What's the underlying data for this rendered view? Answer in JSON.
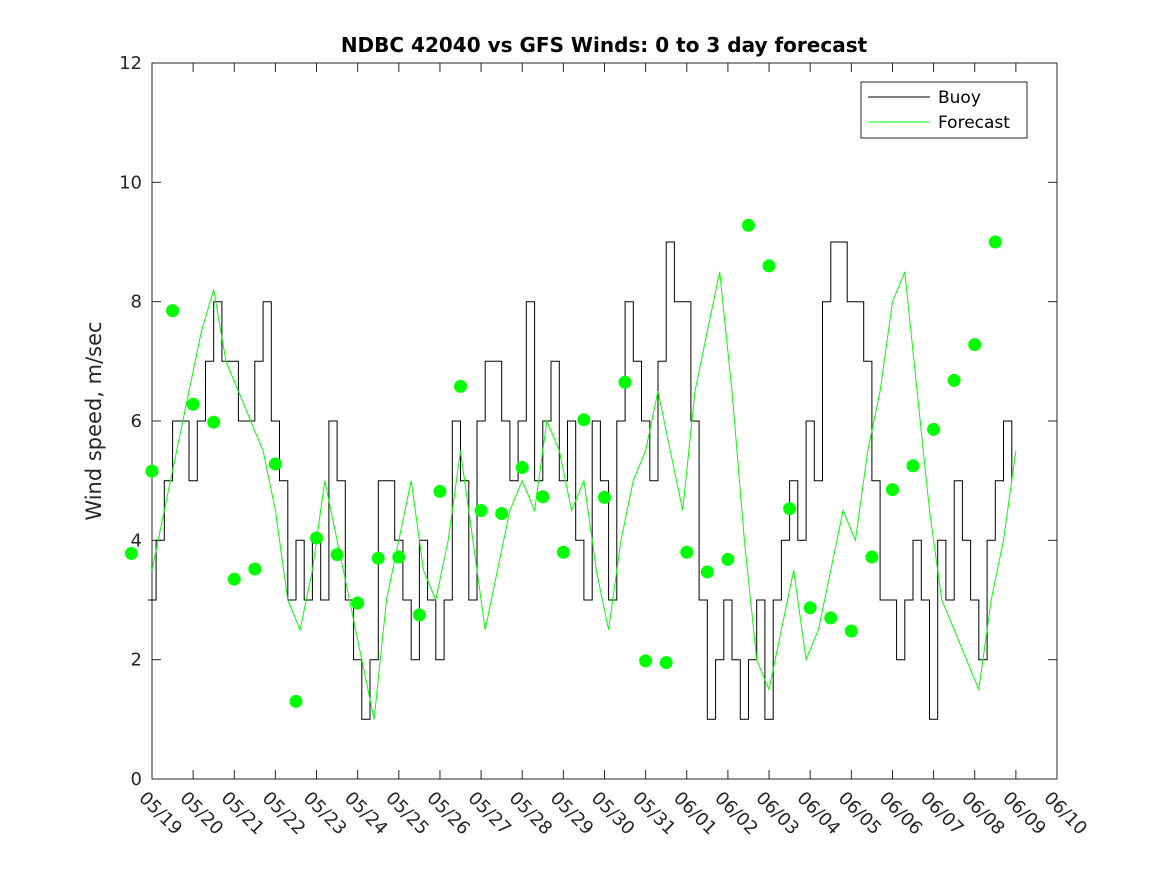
{
  "chart_data": {
    "type": "line",
    "title": "NDBC 42040 vs GFS Winds: 0 to 3 day forecast",
    "xlabel": "",
    "ylabel": "Wind speed, m/sec",
    "xlim": [
      "05/19",
      "06/10"
    ],
    "ylim": [
      0,
      12
    ],
    "y_ticks": [
      0,
      2,
      4,
      6,
      8,
      10,
      12
    ],
    "x_tick_labels": [
      "05/19",
      "05/20",
      "05/21",
      "05/22",
      "05/23",
      "05/24",
      "05/25",
      "05/26",
      "05/27",
      "05/28",
      "05/29",
      "05/30",
      "05/31",
      "06/01",
      "06/02",
      "06/03",
      "06/04",
      "06/05",
      "06/06",
      "06/07",
      "06/08",
      "06/09",
      "06/10"
    ],
    "legend": {
      "placement": "top-right",
      "entries": [
        "Buoy",
        "Forecast"
      ]
    },
    "grid": false,
    "colors": {
      "buoy": "#000000",
      "forecast": "#00ff00",
      "analysis_points": "#00ff00"
    },
    "series": [
      {
        "name": "Buoy",
        "x_days_note": "x in days after 05/19",
        "x": [
          -0.1,
          0.1,
          0.3,
          0.5,
          0.7,
          0.9,
          1.1,
          1.3,
          1.5,
          1.7,
          1.9,
          2.1,
          2.3,
          2.5,
          2.7,
          2.9,
          3.1,
          3.3,
          3.5,
          3.7,
          3.9,
          4.1,
          4.3,
          4.5,
          4.7,
          4.9,
          5.1,
          5.3,
          5.5,
          5.7,
          5.9,
          6.1,
          6.3,
          6.5,
          6.7,
          6.9,
          7.1,
          7.3,
          7.5,
          7.7,
          7.9,
          8.1,
          8.3,
          8.5,
          8.7,
          8.9,
          9.1,
          9.3,
          9.5,
          9.7,
          9.9,
          10.1,
          10.3,
          10.5,
          10.7,
          10.9,
          11.1,
          11.3,
          11.5,
          11.7,
          11.9,
          12.1,
          12.3,
          12.5,
          12.7,
          12.9,
          13.1,
          13.3,
          13.5,
          13.7,
          13.9,
          14.1,
          14.3,
          14.5,
          14.7,
          14.9,
          15.1,
          15.3,
          15.5,
          15.7,
          15.9,
          16.1,
          16.3,
          16.5,
          16.7,
          16.9,
          17.1,
          17.3,
          17.5,
          17.7,
          17.9,
          18.1,
          18.3,
          18.5,
          18.7,
          18.9,
          19.1,
          19.3,
          19.5,
          19.7,
          19.9,
          20.1,
          20.3,
          20.5,
          20.7,
          20.9
        ],
        "values": [
          3,
          4,
          5,
          6,
          6,
          5,
          6,
          7,
          8,
          7,
          7,
          6,
          6,
          7,
          8,
          6,
          5,
          3,
          4,
          3,
          4,
          3,
          6,
          5,
          3,
          2,
          1,
          2,
          5,
          5,
          4,
          3,
          2,
          4,
          3,
          2,
          3,
          6,
          5,
          3,
          6,
          7,
          7,
          6,
          5,
          6,
          8,
          5,
          6,
          7,
          5,
          6,
          4,
          3,
          6,
          5,
          3,
          6,
          8,
          7,
          6,
          5,
          7,
          9,
          8,
          8,
          6,
          3,
          1,
          2,
          3,
          2,
          1,
          2,
          3,
          1,
          3,
          4,
          5,
          4,
          6,
          5,
          8,
          9,
          9,
          8,
          8,
          7,
          5,
          3,
          3,
          2,
          3,
          4,
          3,
          1,
          4,
          3,
          5,
          4,
          3,
          2,
          4,
          5,
          6,
          5
        ]
      },
      {
        "name": "Forecast",
        "x": [
          0.0,
          0.3,
          0.6,
          0.9,
          1.2,
          1.5,
          1.8,
          2.1,
          2.4,
          2.7,
          3.0,
          3.3,
          3.6,
          3.9,
          4.2,
          4.5,
          4.8,
          5.1,
          5.4,
          5.7,
          6.0,
          6.3,
          6.6,
          6.9,
          7.2,
          7.5,
          7.8,
          8.1,
          8.4,
          8.7,
          9.0,
          9.3,
          9.6,
          9.9,
          10.2,
          10.5,
          10.8,
          11.1,
          11.4,
          11.7,
          12.0,
          12.3,
          12.6,
          12.9,
          13.2,
          13.5,
          13.8,
          14.1,
          14.4,
          14.7,
          15.0,
          15.3,
          15.6,
          15.9,
          16.2,
          16.5,
          16.8,
          17.1,
          17.4,
          17.7,
          18.0,
          18.3,
          18.6,
          18.9,
          19.2,
          19.5,
          19.8,
          20.1,
          20.4,
          20.7,
          21.0
        ],
        "values": [
          3.5,
          4.5,
          5.5,
          6.5,
          7.5,
          8.2,
          7.0,
          6.5,
          6.0,
          5.5,
          4.5,
          3.0,
          2.5,
          3.5,
          5.0,
          4.0,
          3.0,
          2.0,
          1.0,
          3.0,
          4.0,
          5.0,
          3.5,
          3.0,
          4.0,
          5.5,
          4.0,
          2.5,
          3.5,
          4.5,
          5.0,
          4.5,
          6.0,
          5.5,
          4.5,
          5.0,
          3.5,
          2.5,
          4.0,
          5.0,
          5.5,
          6.5,
          5.5,
          4.5,
          6.5,
          7.5,
          8.5,
          6.5,
          4.0,
          2.0,
          1.5,
          2.5,
          3.5,
          2.0,
          2.5,
          3.5,
          4.5,
          4.0,
          5.5,
          6.5,
          8.0,
          8.5,
          6.5,
          4.5,
          3.0,
          2.5,
          2.0,
          1.5,
          3.0,
          4.0,
          5.5
        ]
      }
    ],
    "analysis_points": {
      "x": [
        -0.5,
        0,
        0.5,
        1,
        1.5,
        2,
        2.5,
        3,
        3.5,
        4,
        4.5,
        5,
        5.5,
        6,
        6.5,
        7,
        7.5,
        8,
        8.5,
        9,
        9.5,
        10,
        10.5,
        11,
        11.5,
        12,
        12.5,
        13,
        13.5,
        14,
        14.5,
        15,
        15.5,
        16,
        16.5,
        17,
        17.5,
        18,
        18.5,
        19,
        19.5,
        20,
        20.5
      ],
      "values": [
        3.78,
        5.16,
        7.85,
        6.28,
        5.98,
        3.35,
        3.52,
        5.28,
        1.3,
        4.04,
        3.76,
        2.95,
        3.7,
        3.72,
        2.75,
        4.82,
        6.58,
        4.5,
        4.45,
        5.22,
        4.73,
        3.8,
        6.02,
        4.72,
        6.65,
        1.98,
        1.95,
        3.8,
        3.47,
        3.68,
        9.28,
        8.6,
        4.53,
        2.87,
        2.7,
        2.48,
        3.72,
        4.85,
        5.25,
        5.86,
        6.68,
        7.28,
        9.0
      ]
    }
  }
}
